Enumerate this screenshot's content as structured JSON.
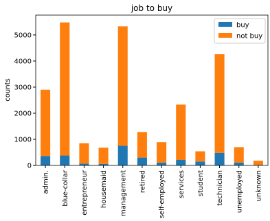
{
  "chart_data": {
    "type": "stacked_bar",
    "title": "job to buy",
    "y_label": "counts",
    "categories": [
      "admin.",
      "blue-collar",
      "entrepreneur",
      "housemaid",
      "management",
      "retired",
      "self-employed",
      "services",
      "student",
      "technician",
      "unemployed",
      "unknown"
    ],
    "series": [
      {
        "name": "buy",
        "color": "#1f77b4",
        "values": [
          360,
          380,
          70,
          60,
          750,
          300,
          110,
          210,
          150,
          480,
          110,
          20
        ]
      },
      {
        "name": "not buy",
        "color": "#ff7f0e",
        "values": [
          2540,
          5100,
          780,
          620,
          4580,
          980,
          780,
          2120,
          390,
          3780,
          590,
          160
        ]
      }
    ],
    "ylim": [
      0,
      5760
    ],
    "yticks": [
      0,
      1000,
      2000,
      3000,
      4000,
      5000
    ],
    "legend": "upper right"
  }
}
